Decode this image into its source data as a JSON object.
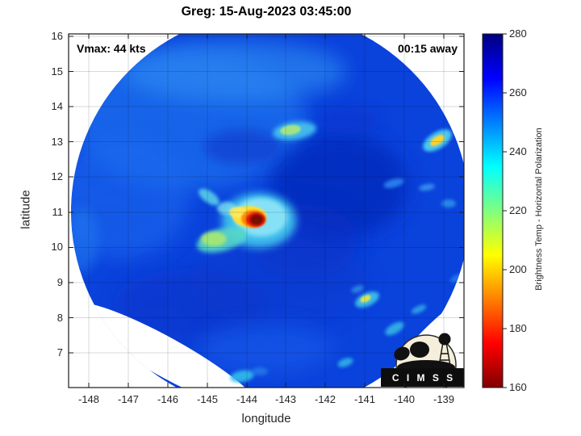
{
  "title": "Greg: 15-Aug-2023 03:45:00",
  "annotations": {
    "vmax": "Vmax: 44 kts",
    "time_to_obs": "00:15 away"
  },
  "axes": {
    "xlabel": "longitude",
    "ylabel": "latitude",
    "x_ticks": [
      "-148",
      "-147",
      "-146",
      "-145",
      "-144",
      "-143",
      "-142",
      "-141",
      "-140",
      "-139"
    ],
    "y_ticks": [
      "16",
      "15",
      "14",
      "13",
      "12",
      "11",
      "10",
      "9",
      "8",
      "7"
    ]
  },
  "colorbar": {
    "label": "Brightness Temp - Horizontal Polarization",
    "ticks": [
      "280",
      "260",
      "240",
      "220",
      "200",
      "180",
      "160"
    ],
    "min": 160,
    "max": 280,
    "gradient_stops_bottom_to_top": [
      "#800000",
      "#ff0000",
      "#ffff00",
      "#00ffff",
      "#0000ff",
      "#000080"
    ]
  },
  "logo": {
    "name": "CIMSS",
    "banner": "C I M S S"
  },
  "colors": {
    "background": "#ffffff",
    "swath_base_blue": "#0a42dc",
    "eye_core_dark_red": "#7a0b04",
    "eyewall_yellow": "#ffdf33",
    "halo_cyan": "#3fc3ee",
    "axis_line": "#1a1a1a",
    "tick_text": "#262626"
  },
  "chart_data": {
    "type": "heatmap",
    "title": "Greg: 15-Aug-2023 03:45:00",
    "xlabel": "longitude",
    "ylabel": "latitude",
    "xlim": [
      -148.5,
      -138.5
    ],
    "ylim": [
      6.0,
      16.1
    ],
    "x_ticks": [
      -148,
      -147,
      -146,
      -145,
      -144,
      -143,
      -142,
      -141,
      -140,
      -139
    ],
    "y_ticks": [
      16,
      15,
      14,
      13,
      12,
      11,
      10,
      9,
      8,
      7
    ],
    "grid": true,
    "colormap": "jet-reversed (dark red 160 -> dark blue 280)",
    "color_range": [
      160,
      280
    ],
    "colorbar_label": "Brightness Temp - Horizontal Polarization",
    "colorbar_ticks": [
      280,
      260,
      240,
      220,
      200,
      180,
      160
    ],
    "storm": {
      "name": "Greg",
      "datetime": "15-Aug-2023 03:45:00",
      "vmax_kts": 44,
      "time_offset_label": "00:15 away"
    },
    "swath": {
      "shape": "circular microwave swath on white background",
      "center_lon": -143.5,
      "center_lat": 11.0,
      "radius_deg": 5.0,
      "background_temp_K": 262
    },
    "features": [
      {
        "name": "eye-hot-spot",
        "lon": -143.75,
        "lat": 10.8,
        "approx_temp_K": 165
      },
      {
        "name": "eyewall-warm-ring",
        "lon": -143.8,
        "lat": 10.8,
        "approx_temp_K": 205
      },
      {
        "name": "cold-halo-around-eye",
        "lon": -143.7,
        "lat": 10.8,
        "approx_temp_K": 243
      },
      {
        "name": "inner-band-hook-southwest",
        "lon": -144.7,
        "lat": 10.2,
        "approx_temp_K": 228
      },
      {
        "name": "convective-cell-north",
        "lon": -142.8,
        "lat": 13.3,
        "approx_temp_K": 228
      },
      {
        "name": "convective-cell-northeast",
        "lon": -139.1,
        "lat": 13.0,
        "approx_temp_K": 205
      },
      {
        "name": "convective-cell-southeast",
        "lon": -140.9,
        "lat": 8.5,
        "approx_temp_K": 215
      },
      {
        "name": "rainband-streak-south",
        "lon": -140.2,
        "lat": 7.7,
        "approx_temp_K": 238
      },
      {
        "name": "rainband-cell-south",
        "lon": -144.3,
        "lat": 6.3,
        "approx_temp_K": 235
      }
    ]
  }
}
